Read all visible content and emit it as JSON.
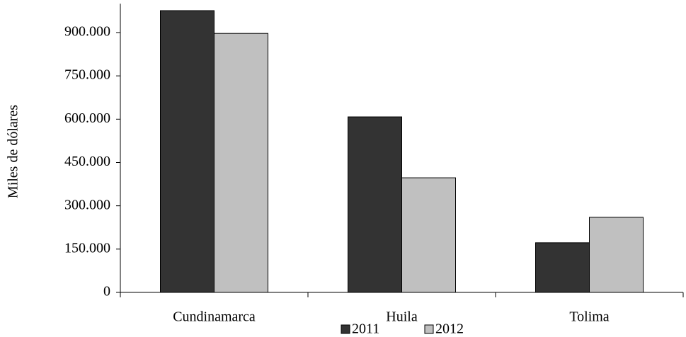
{
  "chart_data": {
    "type": "bar",
    "y_label": "Miles de dólares",
    "categories": [
      "Cundinamarca",
      "Huila",
      "Tolima"
    ],
    "series": [
      {
        "name": "2011",
        "color": "#333333",
        "values": [
          976000,
          608000,
          172000
        ]
      },
      {
        "name": "2012",
        "color": "#c0c0c0",
        "values": [
          897000,
          397000,
          260000
        ]
      }
    ],
    "ylim": [
      0,
      1000000
    ],
    "yticks": [
      0,
      {
        "value": 150000,
        "label": "150.000"
      },
      {
        "value": 300000,
        "label": "300.000"
      },
      {
        "value": 450000,
        "label": "450.000"
      },
      {
        "value": 600000,
        "label": "600.000"
      },
      {
        "value": 750000,
        "label": "750.000"
      },
      {
        "value": 900000,
        "label": "900.000"
      }
    ],
    "legend": "bottom"
  }
}
